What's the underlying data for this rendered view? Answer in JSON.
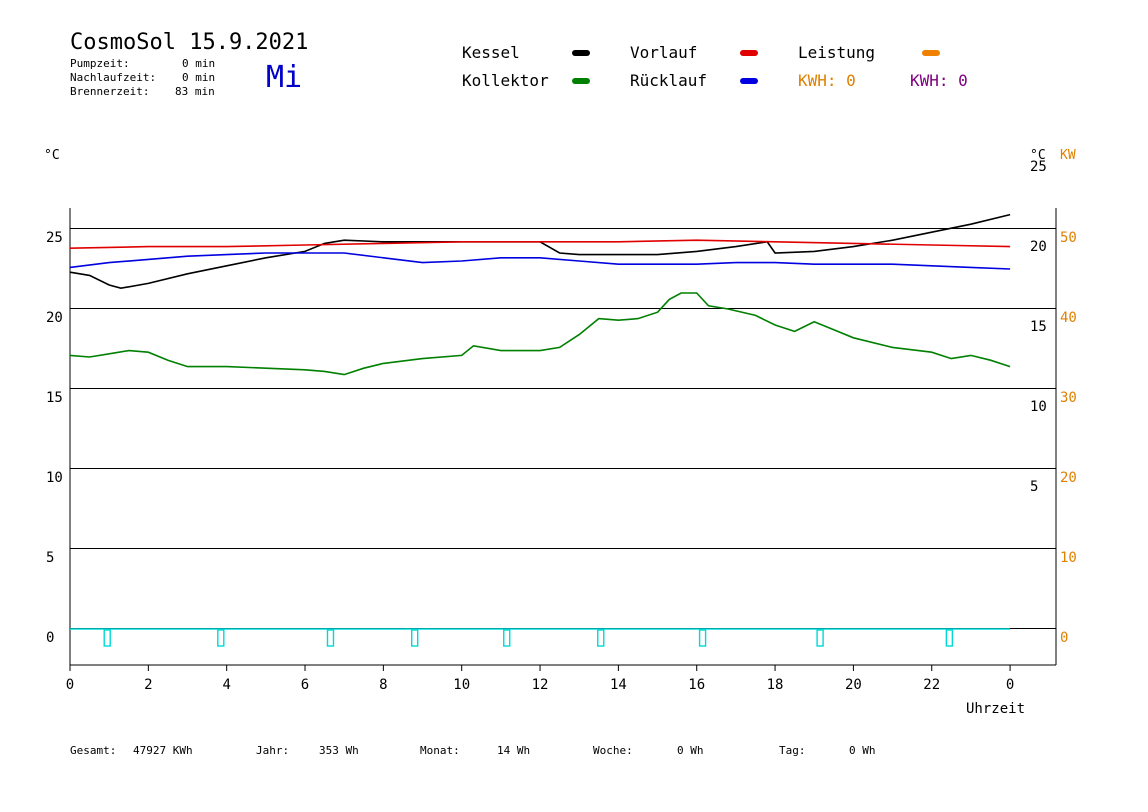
{
  "header": {
    "title": "CosmoSol 15.9.2021",
    "weekday": "Mi",
    "stats": [
      {
        "label": "Pumpzeit:",
        "value": "0 min"
      },
      {
        "label": "Nachlaufzeit:",
        "value": "0 min"
      },
      {
        "label": "Brennerzeit:",
        "value": "83 min"
      }
    ]
  },
  "legend": {
    "items": [
      {
        "label": "Kessel",
        "color": "#000000"
      },
      {
        "label": "Vorlauf",
        "color": "#e00000"
      },
      {
        "label": "Leistung",
        "color": "#f08000"
      },
      {
        "label": "Kollektor",
        "color": "#008000"
      },
      {
        "label": "Rücklauf",
        "color": "#0000e0"
      }
    ],
    "kwh_left": "KWH: 0",
    "kwh_left_color": "#e08000",
    "kwh_right": "KWH: 0",
    "kwh_right_color": "#800080"
  },
  "axes": {
    "left_unit": "°C",
    "right_unit": "°C",
    "right_unit2": "KW",
    "right_unit2_color": "#e08000",
    "x_label": "Uhrzeit"
  },
  "footer": [
    {
      "label": "Gesamt:",
      "value": "47927 KWh"
    },
    {
      "label": "Jahr:",
      "value": "353 Wh"
    },
    {
      "label": "Monat:",
      "value": "14 Wh"
    },
    {
      "label": "Woche:",
      "value": "0 Wh"
    },
    {
      "label": "Tag:",
      "value": "0 Wh"
    }
  ],
  "chart_data": {
    "type": "line",
    "x_ticks": [
      "0",
      "2",
      "4",
      "6",
      "8",
      "10",
      "12",
      "14",
      "16",
      "18",
      "20",
      "22",
      "0"
    ],
    "xlim": [
      0,
      24
    ],
    "ylim": [
      -2,
      26.4
    ],
    "y_ticks_left": [
      "0",
      "5",
      "10",
      "15",
      "20",
      "25"
    ],
    "y_ticks_right_temp": [
      "5",
      "10",
      "15",
      "20",
      "25"
    ],
    "y_ticks_right_power": [
      "0",
      "10",
      "20",
      "30",
      "40",
      "50"
    ],
    "grid": "horizontal",
    "series": [
      {
        "name": "Kessel",
        "color": "#000000",
        "x": [
          0,
          0.5,
          1,
          1.3,
          2,
          3,
          4,
          5,
          6,
          6.5,
          7,
          8,
          9,
          10,
          11,
          12,
          12.5,
          13,
          14,
          15,
          16,
          17,
          17.8,
          18,
          19,
          20,
          21,
          22,
          23,
          24
        ],
        "y": [
          22.3,
          22.1,
          21.5,
          21.3,
          21.6,
          22.2,
          22.7,
          23.2,
          23.6,
          24.1,
          24.3,
          24.2,
          24.2,
          24.2,
          24.2,
          24.2,
          23.5,
          23.4,
          23.4,
          23.4,
          23.6,
          23.9,
          24.2,
          23.5,
          23.6,
          23.9,
          24.3,
          24.8,
          25.3,
          25.9
        ]
      },
      {
        "name": "Vorlauf",
        "color": "#e00000",
        "x": [
          0,
          2,
          4,
          6,
          8,
          10,
          12,
          14,
          16,
          18,
          20,
          22,
          24
        ],
        "y": [
          23.8,
          23.9,
          23.9,
          24.0,
          24.1,
          24.2,
          24.2,
          24.2,
          24.3,
          24.2,
          24.1,
          24.0,
          23.9
        ]
      },
      {
        "name": "Rücklauf",
        "color": "#0000e0",
        "x": [
          0,
          1,
          2,
          3,
          4,
          5,
          6,
          7,
          8,
          9,
          10,
          11,
          12,
          13,
          14,
          15,
          16,
          17,
          18,
          19,
          20,
          21,
          22,
          23,
          24
        ],
        "y": [
          22.6,
          22.9,
          23.1,
          23.3,
          23.4,
          23.5,
          23.5,
          23.5,
          23.2,
          22.9,
          23.0,
          23.2,
          23.2,
          23.0,
          22.8,
          22.8,
          22.8,
          22.9,
          22.9,
          22.8,
          22.8,
          22.8,
          22.7,
          22.6,
          22.5
        ]
      },
      {
        "name": "Kollektor",
        "color": "#008000",
        "x": [
          0,
          0.5,
          1,
          1.5,
          2,
          2.5,
          3,
          4,
          5,
          6,
          6.5,
          7,
          7.5,
          8,
          9,
          10,
          10.3,
          11,
          12,
          12.5,
          13,
          13.5,
          14,
          14.5,
          15,
          15.3,
          15.6,
          16,
          16.3,
          16.8,
          17.5,
          18,
          18.5,
          19,
          19.5,
          20,
          21,
          22,
          22.5,
          23,
          23.5,
          24
        ],
        "y": [
          17.1,
          17.0,
          17.2,
          17.4,
          17.3,
          16.8,
          16.4,
          16.4,
          16.3,
          16.2,
          16.1,
          15.9,
          16.3,
          16.6,
          16.9,
          17.1,
          17.7,
          17.4,
          17.4,
          17.6,
          18.4,
          19.4,
          19.3,
          19.4,
          19.8,
          20.6,
          21.0,
          21.0,
          20.2,
          20.0,
          19.6,
          19.0,
          18.6,
          19.2,
          18.7,
          18.2,
          17.6,
          17.3,
          16.9,
          17.1,
          16.8,
          16.4
        ]
      },
      {
        "name": "Leistung",
        "color": "#00e0e0",
        "x": [
          0,
          24
        ],
        "y": [
          0,
          0
        ]
      }
    ]
  }
}
